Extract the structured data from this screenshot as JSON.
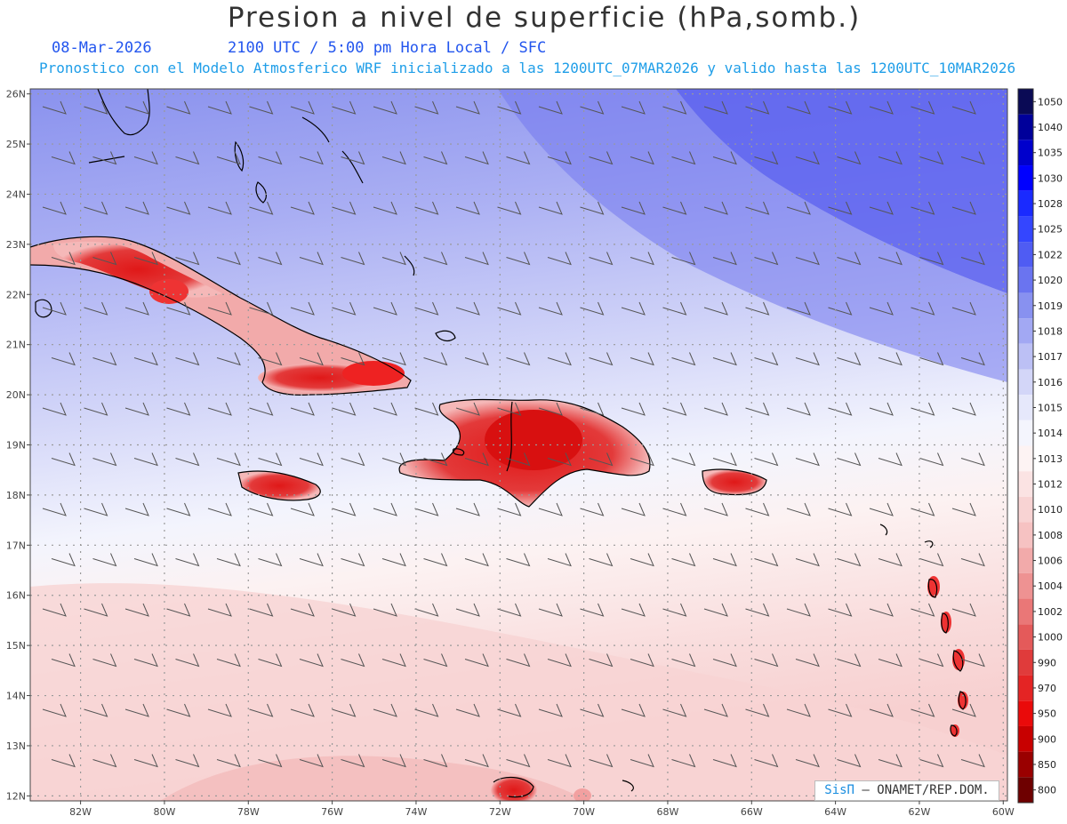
{
  "title": "Presion a nivel de superficie (hPa,somb.)",
  "date": "08-Mar-2026",
  "valid_time": "2100 UTC / 5:00 pm Hora Local / SFC",
  "forecast_line": "Pronostico con el Modelo Atmosferico WRF inicializado a las 1200UTC_07MAR2026 y valido hasta las  1200UTC_10MAR2026",
  "credit": {
    "brand": "SisΠ",
    "text": "– ONAMET/REP.DOM."
  },
  "map": {
    "lon_range": [
      -83.2,
      -59.9
    ],
    "lat_range": [
      11.9,
      26.1
    ],
    "lat_labels": [
      "26N",
      "25N",
      "24N",
      "23N",
      "22N",
      "21N",
      "20N",
      "19N",
      "18N",
      "17N",
      "16N",
      "15N",
      "14N",
      "13N",
      "12N"
    ],
    "lon_labels": [
      "82W",
      "80W",
      "78W",
      "76W",
      "74W",
      "72W",
      "70W",
      "68W",
      "66W",
      "64W",
      "62W",
      "60W"
    ]
  },
  "colorbar": {
    "levels": [
      "1050",
      "1040",
      "1035",
      "1030",
      "1028",
      "1025",
      "1022",
      "1020",
      "1019",
      "1018",
      "1017",
      "1016",
      "1015",
      "1014",
      "1013",
      "1012",
      "1010",
      "1008",
      "1006",
      "1004",
      "1002",
      "1000",
      "990",
      "970",
      "950",
      "900",
      "850",
      "800"
    ],
    "colors": [
      "#0a0a55",
      "#00009a",
      "#0000cc",
      "#0000ff",
      "#1a2aff",
      "#3446ff",
      "#4f5cf3",
      "#6a74f0",
      "#8891f0",
      "#a2a8f3",
      "#bcc0f5",
      "#d3d6f8",
      "#e6e8fb",
      "#f4f5fd",
      "#fdf3f3",
      "#fbe3e3",
      "#f8d3d3",
      "#f6c2c2",
      "#f2aaaa",
      "#ee9292",
      "#ea7777",
      "#e45a5a",
      "#e03b3b",
      "#e42424",
      "#ea0a0a",
      "#c80000",
      "#9a0000",
      "#6e0000"
    ]
  }
}
